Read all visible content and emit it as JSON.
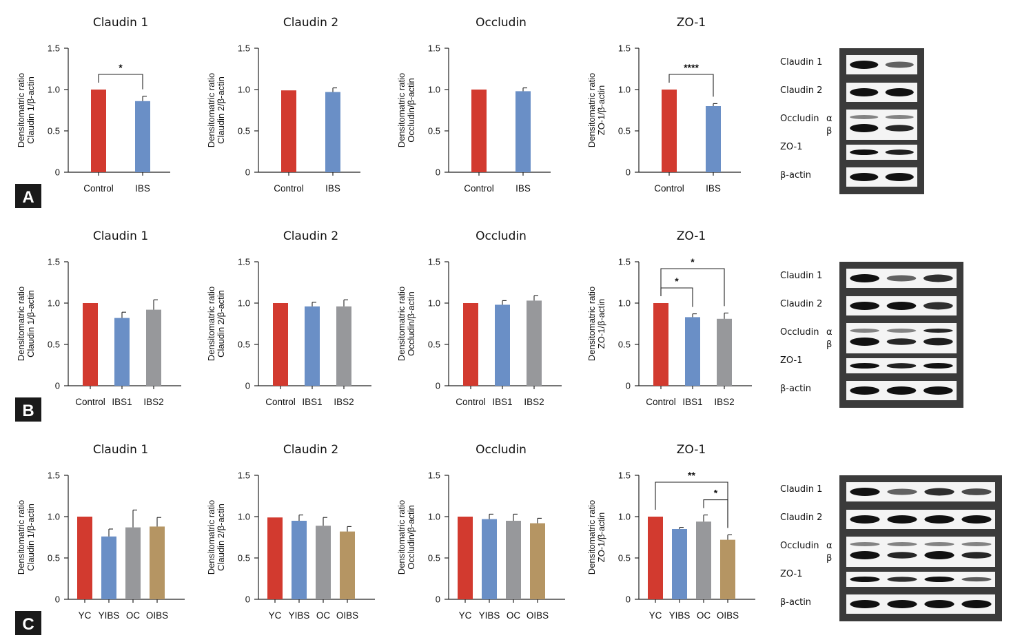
{
  "colors": {
    "Control": "#d23a2f",
    "YC": "#d23a2f",
    "IBS": "#6a8fc6",
    "IBS1": "#6a8fc6",
    "YIBS": "#6a8fc6",
    "IBS2": "#97989b",
    "OC": "#97989b",
    "OIBS": "#b59563",
    "blot_bg": "#3b3b3b",
    "band": "#111111",
    "strip": "#f4f4f4"
  },
  "ylabel_line1": "Densitomatric ratio",
  "blot_labels": {
    "claudin1": "Claudin 1",
    "claudin2": "Claudin 2",
    "occludin": "Occludin",
    "alpha": "α",
    "beta": "β",
    "zo1": "ZO-1",
    "actin": "β-actin"
  },
  "chart_data": [
    {
      "type": "bar",
      "panel": "A",
      "title": "Claudin 1",
      "ylabel": "Claudin 1/β-actin",
      "ylim": [
        0,
        1.5
      ],
      "yticks": [
        "0",
        "0.5",
        "1.0",
        "1.5"
      ],
      "categories": [
        "Control",
        "IBS"
      ],
      "values": [
        1.0,
        0.86
      ],
      "errors": [
        0,
        0.06
      ],
      "significance": [
        {
          "from": 0,
          "to": 1,
          "label": "*",
          "level": 1
        }
      ]
    },
    {
      "type": "bar",
      "panel": "A",
      "title": "Claudin 2",
      "ylabel": "Claudin 2/β-actin",
      "ylim": [
        0,
        1.5
      ],
      "yticks": [
        "0",
        "0.5",
        "1.0",
        "1.5"
      ],
      "categories": [
        "Control",
        "IBS"
      ],
      "values": [
        0.99,
        0.97
      ],
      "errors": [
        0,
        0.05
      ],
      "significance": []
    },
    {
      "type": "bar",
      "panel": "A",
      "title": "Occludin",
      "ylabel": "Occludin/β-actin",
      "ylim": [
        0,
        1.5
      ],
      "yticks": [
        "0",
        "0.5",
        "1.0",
        "1.5"
      ],
      "categories": [
        "Control",
        "IBS"
      ],
      "values": [
        1.0,
        0.98
      ],
      "errors": [
        0,
        0.04
      ],
      "significance": []
    },
    {
      "type": "bar",
      "panel": "A",
      "title": "ZO-1",
      "ylabel": "ZO-1/β-actin",
      "ylim": [
        0,
        1.5
      ],
      "yticks": [
        "0",
        "0.5",
        "1.0",
        "1.5"
      ],
      "categories": [
        "Control",
        "IBS"
      ],
      "values": [
        1.0,
        0.8
      ],
      "errors": [
        0,
        0.03
      ],
      "significance": [
        {
          "from": 0,
          "to": 1,
          "label": "****",
          "level": 1
        }
      ]
    },
    {
      "type": "bar",
      "panel": "B",
      "title": "Claudin 1",
      "ylabel": "Claudin 1/β-actin",
      "ylim": [
        0,
        1.5
      ],
      "yticks": [
        "0",
        "0.5",
        "1.0",
        "1.5"
      ],
      "categories": [
        "Control",
        "IBS1",
        "IBS2"
      ],
      "values": [
        1.0,
        0.82,
        0.92
      ],
      "errors": [
        0,
        0.07,
        0.12
      ],
      "significance": []
    },
    {
      "type": "bar",
      "panel": "B",
      "title": "Claudin 2",
      "ylabel": "Claudin 2/β-actin",
      "ylim": [
        0,
        1.5
      ],
      "yticks": [
        "0",
        "0.5",
        "1.0",
        "1.5"
      ],
      "categories": [
        "Control",
        "IBS1",
        "IBS2"
      ],
      "values": [
        1.0,
        0.96,
        0.96
      ],
      "errors": [
        0,
        0.05,
        0.08
      ],
      "significance": []
    },
    {
      "type": "bar",
      "panel": "B",
      "title": "Occludin",
      "ylabel": "Occludin/β-actin",
      "ylim": [
        0,
        1.5
      ],
      "yticks": [
        "0",
        "0.5",
        "1.0",
        "1.5"
      ],
      "categories": [
        "Control",
        "IBS1",
        "IBS2"
      ],
      "values": [
        1.0,
        0.98,
        1.03
      ],
      "errors": [
        0,
        0.05,
        0.06
      ],
      "significance": []
    },
    {
      "type": "bar",
      "panel": "B",
      "title": "ZO-1",
      "ylabel": "ZO-1/β-actin",
      "ylim": [
        0,
        1.5
      ],
      "yticks": [
        "0",
        "0.5",
        "1.0",
        "1.5"
      ],
      "categories": [
        "Control",
        "IBS1",
        "IBS2"
      ],
      "values": [
        1.0,
        0.83,
        0.81
      ],
      "errors": [
        0,
        0.04,
        0.07
      ],
      "significance": [
        {
          "from": 0,
          "to": 1,
          "label": "*",
          "level": 1
        },
        {
          "from": 0,
          "to": 2,
          "label": "*",
          "level": 2
        }
      ]
    },
    {
      "type": "bar",
      "panel": "C",
      "title": "Claudin 1",
      "ylabel": "Claudin 1/β-actin",
      "ylim": [
        0,
        1.5
      ],
      "yticks": [
        "0",
        "0.5",
        "1.0",
        "1.5"
      ],
      "categories": [
        "YC",
        "YIBS",
        "OC",
        "OIBS"
      ],
      "values": [
        1.0,
        0.76,
        0.87,
        0.88
      ],
      "errors": [
        0,
        0.09,
        0.21,
        0.11
      ],
      "significance": []
    },
    {
      "type": "bar",
      "panel": "C",
      "title": "Claudin 2",
      "ylabel": "Claudin 2/β-actin",
      "ylim": [
        0,
        1.5
      ],
      "yticks": [
        "0",
        "0.5",
        "1.0",
        "1.5"
      ],
      "categories": [
        "YC",
        "YIBS",
        "OC",
        "OIBS"
      ],
      "values": [
        0.99,
        0.95,
        0.89,
        0.82
      ],
      "errors": [
        0,
        0.07,
        0.1,
        0.06
      ],
      "significance": []
    },
    {
      "type": "bar",
      "panel": "C",
      "title": "Occludin",
      "ylabel": "Occludin/β-actin",
      "ylim": [
        0,
        1.5
      ],
      "yticks": [
        "0",
        "0.5",
        "1.0",
        "1.5"
      ],
      "categories": [
        "YC",
        "YIBS",
        "OC",
        "OIBS"
      ],
      "values": [
        1.0,
        0.97,
        0.95,
        0.92
      ],
      "errors": [
        0,
        0.06,
        0.08,
        0.06
      ],
      "significance": []
    },
    {
      "type": "bar",
      "panel": "C",
      "title": "ZO-1",
      "ylabel": "ZO-1/β-actin",
      "ylim": [
        0,
        1.5
      ],
      "yticks": [
        "0",
        "0.5",
        "1.0",
        "1.5"
      ],
      "categories": [
        "YC",
        "YIBS",
        "OC",
        "OIBS"
      ],
      "values": [
        1.0,
        0.85,
        0.94,
        0.72
      ],
      "errors": [
        0,
        0.02,
        0.08,
        0.06
      ],
      "significance": [
        {
          "from": 2,
          "to": 3,
          "label": "*",
          "level": 1
        },
        {
          "from": 0,
          "to": 3,
          "label": "**",
          "level": 2
        }
      ]
    }
  ],
  "panels": [
    {
      "letter": "A",
      "lanes": 2,
      "occludin_lanes": 2
    },
    {
      "letter": "B",
      "lanes": 3,
      "occludin_lanes": 3
    },
    {
      "letter": "C",
      "lanes": 4,
      "occludin_lanes": 4
    }
  ]
}
